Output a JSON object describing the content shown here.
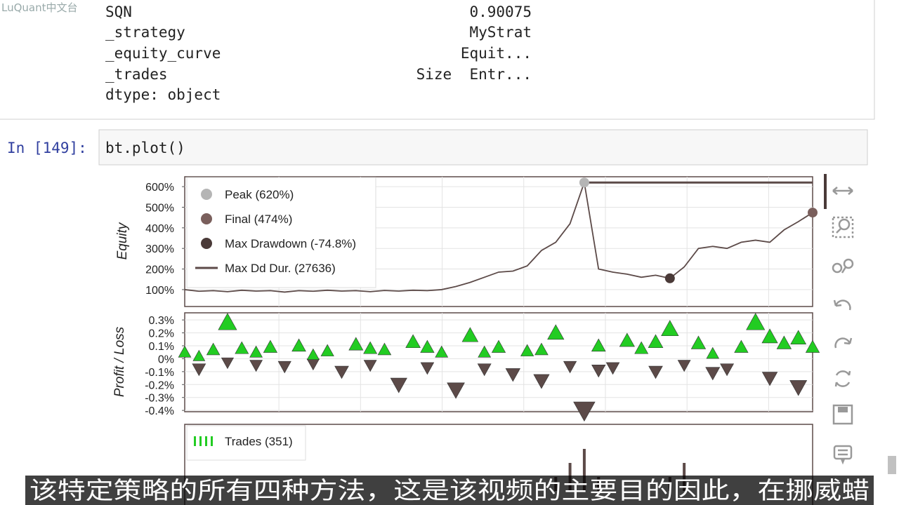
{
  "watermark": "LuQuant中文台",
  "output": {
    "rows": [
      {
        "key": "SQN",
        "value": "0.90075"
      },
      {
        "key": "_strategy",
        "value": "MyStrat"
      },
      {
        "key": "_equity_curve",
        "value": "Equit..."
      },
      {
        "key": "_trades",
        "value": "Size  Entr..."
      }
    ],
    "dtype": "dtype: object"
  },
  "cell": {
    "prompt": "In [149]:",
    "code": "bt.plot()"
  },
  "plot": {
    "xlim": [
      0,
      44
    ],
    "equity": {
      "type": "line",
      "axis_label": "Equity",
      "ylim": [
        18,
        648
      ],
      "yticks": [
        {
          "value": 100,
          "label": "100%"
        },
        {
          "value": 200,
          "label": "200%"
        },
        {
          "value": 300,
          "label": "300%"
        },
        {
          "value": 400,
          "label": "400%"
        },
        {
          "value": 500,
          "label": "500%"
        },
        {
          "value": 600,
          "label": "600%"
        }
      ],
      "grid": true,
      "color": "#5c4a48",
      "x": [
        0,
        1,
        2,
        3,
        4,
        5,
        6,
        7,
        8,
        9,
        10,
        11,
        12,
        13,
        14,
        15,
        16,
        17,
        18,
        19,
        20,
        21,
        22,
        23,
        24,
        25,
        26,
        27,
        28,
        29,
        30,
        31,
        32,
        33,
        34,
        35,
        36,
        37,
        38,
        39,
        40,
        41,
        42,
        43,
        44
      ],
      "values": [
        100,
        92,
        95,
        90,
        97,
        93,
        95,
        88,
        95,
        92,
        97,
        93,
        95,
        90,
        96,
        93,
        97,
        95,
        100,
        115,
        135,
        160,
        185,
        190,
        215,
        290,
        330,
        420,
        620,
        200,
        185,
        175,
        160,
        170,
        155,
        210,
        300,
        310,
        300,
        330,
        340,
        330,
        390,
        430,
        474
      ],
      "peak": {
        "label": "Peak (620%)",
        "x": 28,
        "value": 620,
        "color": "#b5b5b5"
      },
      "final": {
        "label": "Final (474%)",
        "x": 44,
        "value": 474,
        "color": "#7a5f5c"
      },
      "max_drawdown": {
        "label": "Max Drawdown (-74.8%)",
        "x": 34,
        "value": 155,
        "color": "#4a3a38"
      },
      "max_dd_duration": {
        "label": "Max Dd Dur. (27636)",
        "x": [
          28,
          44
        ],
        "value": 620,
        "color": "#5c4a48"
      }
    },
    "profit_loss": {
      "type": "scatter",
      "axis_label": "Profit / Loss",
      "ylim": [
        -0.41,
        0.355
      ],
      "yticks": [
        {
          "value": -0.4,
          "label": "-0.4%"
        },
        {
          "value": -0.3,
          "label": "-0.3%"
        },
        {
          "value": -0.2,
          "label": "-0.2%"
        },
        {
          "value": -0.1,
          "label": "-0.1%"
        },
        {
          "value": 0,
          "label": "0%"
        },
        {
          "value": 0.1,
          "label": "0.1%"
        },
        {
          "value": 0.2,
          "label": "0.2%"
        },
        {
          "value": 0.3,
          "label": "0.3%"
        }
      ],
      "grid": true,
      "profit_color": "#22cc22",
      "loss_color": "#5c4a48",
      "x": [
        0,
        1,
        2,
        3,
        3,
        4,
        5,
        6,
        7,
        8,
        9,
        10,
        11,
        12,
        13,
        14,
        15,
        16,
        17,
        18,
        19,
        20,
        21,
        22,
        23,
        24,
        25,
        26,
        27,
        28,
        29,
        30,
        31,
        32,
        33,
        34,
        35,
        36,
        37,
        38,
        39,
        40,
        41,
        42,
        43,
        44,
        1,
        5,
        9,
        13,
        17,
        21,
        25,
        29,
        33,
        37,
        41,
        43
      ],
      "values": [
        0.05,
        -0.08,
        0.07,
        0.28,
        -0.03,
        0.08,
        -0.05,
        0.09,
        -0.06,
        0.1,
        -0.04,
        0.06,
        -0.1,
        0.11,
        -0.05,
        0.07,
        -0.2,
        0.13,
        -0.07,
        0.05,
        -0.24,
        0.18,
        -0.08,
        0.09,
        -0.12,
        0.06,
        -0.17,
        0.2,
        -0.06,
        -0.4,
        0.1,
        -0.07,
        0.14,
        0.08,
        -0.1,
        0.23,
        -0.05,
        0.12,
        0.04,
        -0.08,
        0.09,
        0.28,
        -0.15,
        0.12,
        -0.22,
        0.09,
        0.02,
        0.05,
        0.03,
        0.08,
        0.09,
        0.05,
        0.07,
        -0.09,
        0.13,
        -0.11,
        0.17,
        0.16
      ]
    },
    "trades": {
      "type": "bar",
      "legend": "Trades (351)",
      "color": "#5c4a48",
      "legend_color": "#22cc22",
      "ylim": [
        0,
        4
      ],
      "x": [
        26,
        27,
        28,
        29,
        34,
        35
      ],
      "values": [
        1,
        2,
        3,
        1,
        1,
        2
      ]
    }
  },
  "subtitle": "该特定策略的所有四种方法，这是该视频的主要目的因此，在挪威蜡"
}
